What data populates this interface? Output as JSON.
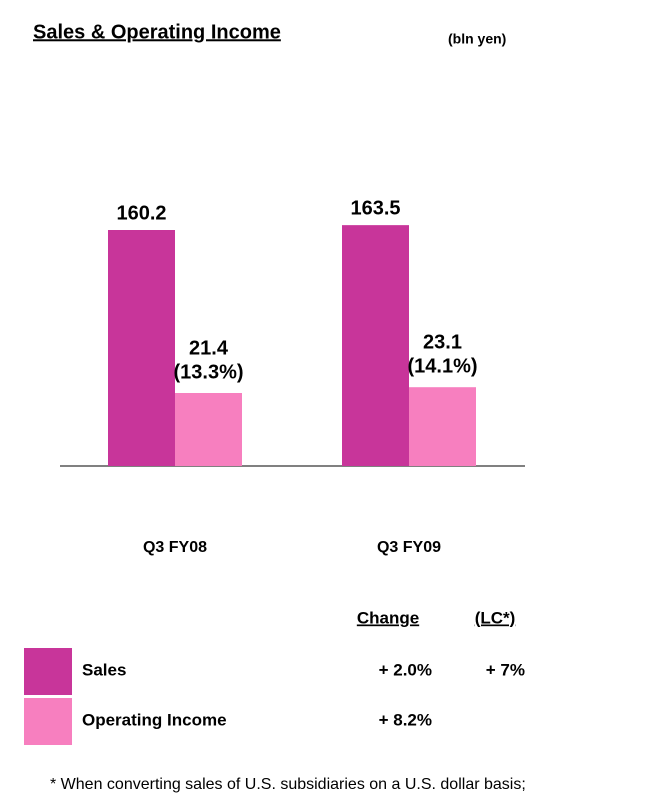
{
  "chart_data": {
    "type": "bar",
    "title": "Sales & Operating Income",
    "unit_note": "(bln yen)",
    "categories": [
      "Q3 FY08",
      "Q3 FY09"
    ],
    "series": [
      {
        "name": "Sales",
        "color": "#c8359a",
        "values": [
          160.2,
          163.5
        ]
      },
      {
        "name": "Operating Income",
        "color": "#f77fbf",
        "values": [
          21.4,
          23.1
        ],
        "margin_labels": [
          "(13.3%)",
          "(14.1%)"
        ]
      }
    ],
    "legend_table": {
      "headers": [
        "Change",
        "(LC*)"
      ],
      "rows": [
        [
          "+ 2.0%",
          "+ 7%"
        ],
        [
          "+ 8.2%"
        ]
      ]
    },
    "footnote": "* When converting sales of U.S. subsidiaries on a U.S. dollar basis;"
  }
}
